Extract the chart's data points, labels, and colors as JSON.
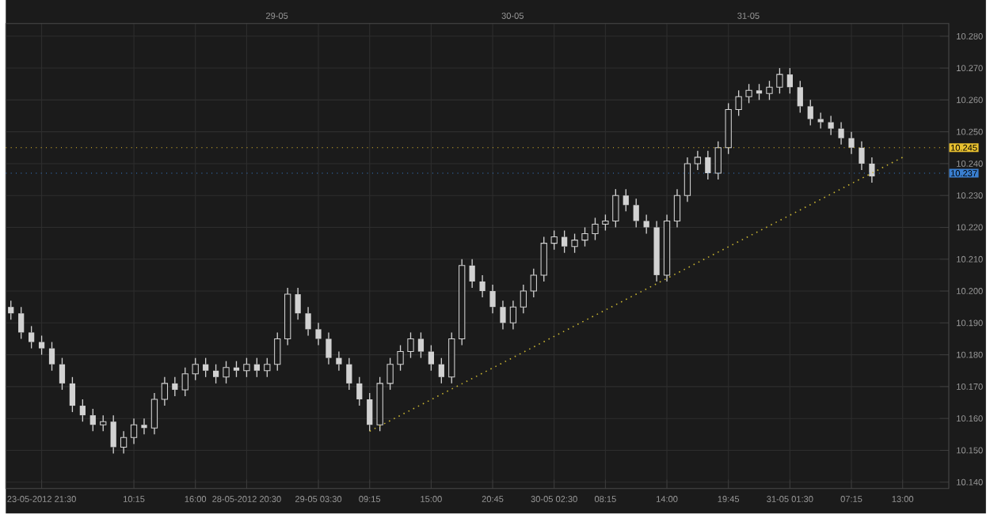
{
  "chart_data": {
    "type": "candlestick",
    "color": "#d2d2d2",
    "grid": true,
    "categories": [
      null,
      null,
      null,
      "23-05-2012 21:30",
      null,
      null,
      null,
      null,
      null,
      null,
      null,
      null,
      "10:15",
      null,
      null,
      null,
      null,
      null,
      "16:00",
      null,
      null,
      null,
      null,
      "28-05-2012 20:30",
      null,
      null,
      null,
      null,
      null,
      null,
      "29-05 03:30",
      null,
      null,
      null,
      null,
      "09:15",
      null,
      null,
      null,
      null,
      null,
      "15:00",
      null,
      null,
      null,
      null,
      null,
      "20:45",
      null,
      null,
      null,
      null,
      null,
      "30-05 02:30",
      null,
      null,
      null,
      null,
      "08:15",
      null,
      null,
      null,
      null,
      null,
      "14:00",
      null,
      null,
      null,
      null,
      null,
      "19:45",
      null,
      null,
      null,
      null,
      null,
      "31-05 01:30",
      null,
      null,
      null,
      null,
      null,
      "07:15",
      null,
      null,
      null,
      null,
      "13:00",
      null,
      null,
      null,
      null
    ],
    "annotations": [
      "29-05",
      "30-05",
      "31-05"
    ],
    "ohlc": [
      [
        10.195,
        10.197,
        10.191,
        10.193
      ],
      [
        10.193,
        10.195,
        10.185,
        10.187
      ],
      [
        10.187,
        10.189,
        10.182,
        10.184
      ],
      [
        10.184,
        10.186,
        10.18,
        10.182
      ],
      [
        10.182,
        10.184,
        10.175,
        10.177
      ],
      [
        10.177,
        10.179,
        10.169,
        10.171
      ],
      [
        10.171,
        10.173,
        10.162,
        10.164
      ],
      [
        10.164,
        10.166,
        10.159,
        10.161
      ],
      [
        10.161,
        10.163,
        10.156,
        10.158
      ],
      [
        10.158,
        10.161,
        10.156,
        10.159
      ],
      [
        10.159,
        10.161,
        10.149,
        10.151
      ],
      [
        10.151,
        10.156,
        10.149,
        10.154
      ],
      [
        10.154,
        10.16,
        10.152,
        10.158
      ],
      [
        10.158,
        10.16,
        10.155,
        10.157
      ],
      [
        10.157,
        10.168,
        10.155,
        10.166
      ],
      [
        10.166,
        10.173,
        10.164,
        10.171
      ],
      [
        10.171,
        10.173,
        10.167,
        10.169
      ],
      [
        10.169,
        10.176,
        10.167,
        10.174
      ],
      [
        10.174,
        10.179,
        10.172,
        10.177
      ],
      [
        10.177,
        10.179,
        10.173,
        10.175
      ],
      [
        10.175,
        10.177,
        10.171,
        10.173
      ],
      [
        10.173,
        10.178,
        10.171,
        10.176
      ],
      [
        10.176,
        10.178,
        10.173,
        10.175
      ],
      [
        10.175,
        10.179,
        10.173,
        10.177
      ],
      [
        10.177,
        10.179,
        10.173,
        10.175
      ],
      [
        10.175,
        10.179,
        10.173,
        10.177
      ],
      [
        10.177,
        10.187,
        10.175,
        10.185
      ],
      [
        10.185,
        10.201,
        10.183,
        10.199
      ],
      [
        10.199,
        10.201,
        10.191,
        10.193
      ],
      [
        10.193,
        10.195,
        10.186,
        10.188
      ],
      [
        10.188,
        10.19,
        10.183,
        10.185
      ],
      [
        10.185,
        10.187,
        10.177,
        10.179
      ],
      [
        10.179,
        10.181,
        10.175,
        10.177
      ],
      [
        10.177,
        10.179,
        10.169,
        10.171
      ],
      [
        10.171,
        10.173,
        10.164,
        10.166
      ],
      [
        10.166,
        10.168,
        10.156,
        10.158
      ],
      [
        10.158,
        10.173,
        10.156,
        10.171
      ],
      [
        10.171,
        10.179,
        10.169,
        10.177
      ],
      [
        10.177,
        10.183,
        10.175,
        10.181
      ],
      [
        10.181,
        10.187,
        10.179,
        10.185
      ],
      [
        10.185,
        10.187,
        10.179,
        10.181
      ],
      [
        10.181,
        10.183,
        10.175,
        10.177
      ],
      [
        10.177,
        10.179,
        10.171,
        10.173
      ],
      [
        10.173,
        10.187,
        10.171,
        10.185
      ],
      [
        10.185,
        10.21,
        10.183,
        10.208
      ],
      [
        10.208,
        10.21,
        10.201,
        10.203
      ],
      [
        10.203,
        10.205,
        10.198,
        10.2
      ],
      [
        10.2,
        10.202,
        10.193,
        10.195
      ],
      [
        10.195,
        10.197,
        10.188,
        10.19
      ],
      [
        10.19,
        10.197,
        10.188,
        10.195
      ],
      [
        10.195,
        10.202,
        10.193,
        10.2
      ],
      [
        10.2,
        10.207,
        10.198,
        10.205
      ],
      [
        10.205,
        10.217,
        10.203,
        10.215
      ],
      [
        10.215,
        10.219,
        10.213,
        10.217
      ],
      [
        10.217,
        10.219,
        10.212,
        10.214
      ],
      [
        10.214,
        10.218,
        10.212,
        10.216
      ],
      [
        10.216,
        10.22,
        10.214,
        10.218
      ],
      [
        10.218,
        10.223,
        10.216,
        10.221
      ],
      [
        10.221,
        10.224,
        10.219,
        10.222
      ],
      [
        10.222,
        10.232,
        10.22,
        10.23
      ],
      [
        10.23,
        10.232,
        10.225,
        10.227
      ],
      [
        10.227,
        10.229,
        10.22,
        10.222
      ],
      [
        10.222,
        10.224,
        10.218,
        10.22
      ],
      [
        10.22,
        10.222,
        10.203,
        10.205
      ],
      [
        10.205,
        10.224,
        10.203,
        10.222
      ],
      [
        10.222,
        10.232,
        10.22,
        10.23
      ],
      [
        10.23,
        10.242,
        10.228,
        10.24
      ],
      [
        10.24,
        10.244,
        10.238,
        10.242
      ],
      [
        10.242,
        10.244,
        10.235,
        10.237
      ],
      [
        10.237,
        10.247,
        10.235,
        10.245
      ],
      [
        10.245,
        10.259,
        10.243,
        10.257
      ],
      [
        10.257,
        10.263,
        10.255,
        10.261
      ],
      [
        10.261,
        10.265,
        10.259,
        10.263
      ],
      [
        10.263,
        10.265,
        10.26,
        10.262
      ],
      [
        10.262,
        10.266,
        10.26,
        10.264
      ],
      [
        10.264,
        10.27,
        10.262,
        10.268
      ],
      [
        10.268,
        10.27,
        10.262,
        10.264
      ],
      [
        10.264,
        10.266,
        10.256,
        10.258
      ],
      [
        10.258,
        10.26,
        10.252,
        10.254
      ],
      [
        10.254,
        10.256,
        10.251,
        10.253
      ],
      [
        10.253,
        10.255,
        10.249,
        10.251
      ],
      [
        10.251,
        10.253,
        10.246,
        10.248
      ],
      [
        10.248,
        10.25,
        10.243,
        10.245
      ],
      [
        10.245,
        10.247,
        10.238,
        10.24
      ],
      [
        10.24,
        10.242,
        10.234,
        10.236
      ],
      null,
      null,
      null,
      null,
      null,
      null,
      null
    ],
    "series": [
      {
        "type": "line",
        "x": [
          "09:15",
          "13:00"
        ],
        "values": [
          10.156,
          10.242
        ],
        "color": "#c8b432",
        "line_style": "dotted"
      }
    ],
    "ref_lines": [
      {
        "axis": "y",
        "value": 10.245,
        "label": "10.245",
        "color": "#e8c030",
        "line_style": "dotted"
      },
      {
        "axis": "y",
        "value": 10.237,
        "label": "10.237",
        "color": "#3a7fd0",
        "line_style": "dotted"
      }
    ],
    "ylim": [
      10.138,
      10.284
    ],
    "yticks": [
      {
        "value": 10.14,
        "label": "10.140"
      },
      {
        "value": 10.15,
        "label": "10.150"
      },
      {
        "value": 10.16,
        "label": "10.160"
      },
      {
        "value": 10.17,
        "label": "10.170"
      },
      {
        "value": 10.18,
        "label": "10.180"
      },
      {
        "value": 10.19,
        "label": "10.190"
      },
      {
        "value": 10.2,
        "label": "10.200"
      },
      {
        "value": 10.21,
        "label": "10.210"
      },
      {
        "value": 10.22,
        "label": "10.220"
      },
      {
        "value": 10.23,
        "label": "10.230"
      },
      {
        "value": 10.24,
        "label": "10.240"
      },
      {
        "value": 10.25,
        "label": "10.250"
      },
      {
        "value": 10.26,
        "label": "10.260"
      },
      {
        "value": 10.27,
        "label": "10.270"
      },
      {
        "value": 10.28,
        "label": "10.280"
      }
    ]
  }
}
